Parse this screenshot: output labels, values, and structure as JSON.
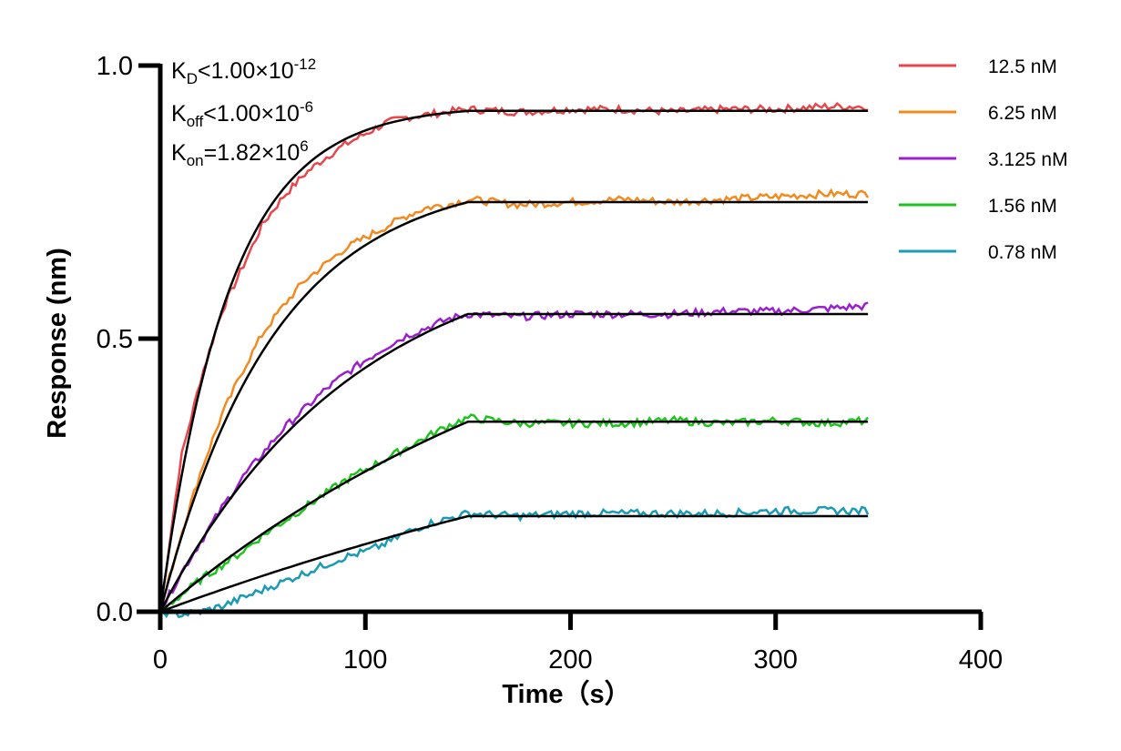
{
  "chart_data": {
    "type": "line",
    "title": "",
    "xlabel": "Time（s）",
    "ylabel": "Response (nm)",
    "xlim": [
      0,
      400
    ],
    "ylim": [
      0,
      1.0
    ],
    "xticks": [
      "0",
      "100",
      "200",
      "300",
      "400"
    ],
    "yticks": [
      "0.0",
      "0.5",
      "1.0"
    ],
    "grid": false,
    "legend_position": "top-right",
    "annotations": {
      "kd": {
        "main": "K",
        "sub": "D",
        "rel": "<1.00×10",
        "exp": "-12"
      },
      "koff": {
        "main": "K",
        "sub": "off",
        "rel": "<1.00×10",
        "exp": "-6"
      },
      "kon": {
        "main": "K",
        "sub": "on",
        "rel": "=1.82×10",
        "exp": "6"
      }
    },
    "fit_color": "#000000",
    "series": [
      {
        "name": "12.5 nM",
        "color": "#e8464a",
        "x": [
          0,
          10,
          20,
          30,
          40,
          50,
          60,
          70,
          80,
          90,
          100,
          110,
          120,
          130,
          140,
          150,
          175,
          200,
          225,
          250,
          275,
          300,
          325,
          345
        ],
        "values": [
          0,
          0.28,
          0.43,
          0.55,
          0.63,
          0.71,
          0.76,
          0.8,
          0.83,
          0.855,
          0.875,
          0.895,
          0.905,
          0.91,
          0.915,
          0.92,
          0.915,
          0.92,
          0.92,
          0.915,
          0.92,
          0.92,
          0.925,
          0.925
        ],
        "fit": {
          "plateau": 0.917,
          "k": 0.03,
          "t_end": 150
        }
      },
      {
        "name": "6.25 nM",
        "color": "#f48a1e",
        "x": [
          0,
          10,
          20,
          30,
          40,
          50,
          60,
          70,
          80,
          90,
          100,
          110,
          120,
          130,
          140,
          150,
          175,
          200,
          225,
          250,
          275,
          300,
          325,
          345
        ],
        "values": [
          0,
          0.14,
          0.26,
          0.36,
          0.44,
          0.51,
          0.56,
          0.605,
          0.635,
          0.665,
          0.685,
          0.705,
          0.725,
          0.74,
          0.745,
          0.755,
          0.745,
          0.75,
          0.755,
          0.75,
          0.755,
          0.76,
          0.765,
          0.765
        ],
        "fit": {
          "plateau": 0.75,
          "k": 0.018,
          "t_end": 150
        }
      },
      {
        "name": "3.125 nM",
        "color": "#9b1fcf",
        "x": [
          0,
          10,
          20,
          30,
          40,
          50,
          60,
          70,
          80,
          90,
          100,
          110,
          120,
          130,
          140,
          150,
          175,
          200,
          225,
          250,
          275,
          300,
          325,
          345
        ],
        "values": [
          0,
          0.07,
          0.13,
          0.19,
          0.245,
          0.29,
          0.335,
          0.37,
          0.405,
          0.435,
          0.46,
          0.485,
          0.505,
          0.52,
          0.535,
          0.545,
          0.54,
          0.545,
          0.545,
          0.545,
          0.55,
          0.55,
          0.555,
          0.56
        ],
        "fit": {
          "plateau": 0.545,
          "k": 0.0105,
          "t_end": 150
        }
      },
      {
        "name": "1.56 nM",
        "color": "#1ec41e",
        "x": [
          0,
          10,
          20,
          30,
          40,
          50,
          60,
          70,
          80,
          90,
          100,
          110,
          120,
          130,
          140,
          150,
          175,
          200,
          225,
          250,
          275,
          300,
          325,
          345
        ],
        "values": [
          0,
          0.03,
          0.06,
          0.085,
          0.11,
          0.14,
          0.165,
          0.19,
          0.215,
          0.24,
          0.26,
          0.28,
          0.3,
          0.32,
          0.34,
          0.355,
          0.345,
          0.345,
          0.345,
          0.35,
          0.345,
          0.35,
          0.345,
          0.35
        ],
        "fit": {
          "plateau": 0.348,
          "k": 0.0045,
          "t_end": 150
        }
      },
      {
        "name": "0.78 nM",
        "color": "#1a9bb5",
        "x": [
          0,
          10,
          20,
          30,
          40,
          50,
          60,
          70,
          80,
          90,
          100,
          110,
          120,
          130,
          140,
          150,
          175,
          200,
          225,
          250,
          275,
          300,
          325,
          345
        ],
        "values": [
          0,
          -0.005,
          0.0,
          0.01,
          0.025,
          0.04,
          0.055,
          0.07,
          0.085,
          0.1,
          0.11,
          0.125,
          0.145,
          0.16,
          0.17,
          0.18,
          0.175,
          0.18,
          0.18,
          0.18,
          0.18,
          0.185,
          0.185,
          0.185
        ],
        "fit": {
          "plateau": 0.175,
          "k": 0.0025,
          "t_end": 150
        }
      }
    ]
  }
}
